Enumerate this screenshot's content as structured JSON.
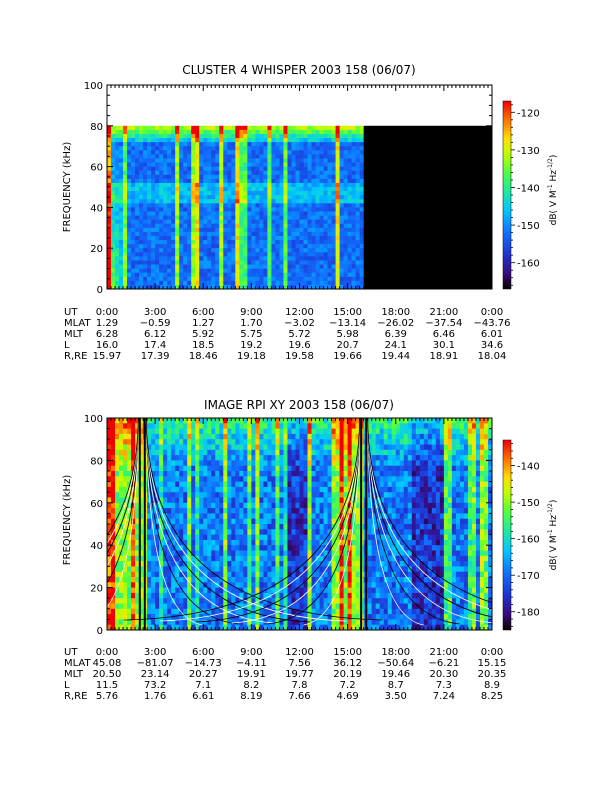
{
  "chart_data": [
    {
      "type": "heatmap",
      "title": "CLUSTER 4 WHISPER 2003 158 (06/07)",
      "ylabel": "FREQUENCY (kHz)",
      "ylim": [
        0,
        100
      ],
      "y_ticks": [
        "0",
        "20",
        "40",
        "60",
        "80",
        "100"
      ],
      "x_ticks": [
        "0:00",
        "3:00",
        "6:00",
        "9:00",
        "12:00",
        "15:00",
        "18:00",
        "21:00",
        "0:00"
      ],
      "data_extent": {
        "max_freq_khz": 80,
        "end_time_hours": 16.0
      },
      "colorbar": {
        "label": "dB( V M⁻¹ Hz⁻¹ᐟ²)",
        "label_parts": {
          "base": "dB( V M",
          "m_exp": "-1",
          "hz": " Hz",
          "hz_exp": "-1/2",
          "close": ")"
        },
        "range": [
          -167,
          -117
        ],
        "ticks": [
          "-120",
          "-130",
          "-140",
          "-150",
          "-160"
        ],
        "tick_values": [
          -120,
          -130,
          -140,
          -150,
          -160
        ]
      },
      "ephemeris": {
        "labels": [
          "UT",
          "MLAT",
          "MLT",
          "L",
          "R,RE"
        ],
        "rows": [
          [
            "0:00",
            "3:00",
            "6:00",
            "9:00",
            "12:00",
            "15:00",
            "18:00",
            "21:00",
            "0:00"
          ],
          [
            "1.29",
            "−0.59",
            "1.27",
            "1.70",
            "−3.02",
            "−13.14",
            "−26.02",
            "−37.54",
            "−43.76"
          ],
          [
            "6.28",
            "6.12",
            "5.92",
            "5.75",
            "5.72",
            "5.98",
            "6.39",
            "6.46",
            "6.01"
          ],
          [
            "16.0",
            "17.4",
            "18.5",
            "19.2",
            "19.6",
            "20.7",
            "24.1",
            "30.1",
            "34.6"
          ],
          [
            "15.97",
            "17.39",
            "18.46",
            "19.18",
            "19.58",
            "19.66",
            "19.44",
            "18.91",
            "18.04"
          ]
        ]
      }
    },
    {
      "type": "heatmap",
      "title": "IMAGE RPI XY 2003 158 (06/07)",
      "ylabel": "FREQUENCY (kHz)",
      "ylim": [
        0,
        100
      ],
      "y_ticks": [
        "0",
        "20",
        "40",
        "60",
        "80",
        "100"
      ],
      "x_ticks": [
        "0:00",
        "3:00",
        "6:00",
        "9:00",
        "12:00",
        "15:00",
        "18:00",
        "21:00",
        "0:00"
      ],
      "colorbar": {
        "label": "dB( V M⁻¹ Hz⁻¹ᐟ²)",
        "label_parts": {
          "base": "dB( V M",
          "m_exp": "-1",
          "hz": " Hz",
          "hz_exp": "-1/2",
          "close": ")"
        },
        "range": [
          -185,
          -133
        ],
        "ticks": [
          "-140",
          "-150",
          "-160",
          "-170",
          "-180"
        ],
        "tick_values": [
          -140,
          -150,
          -160,
          -170,
          -180
        ]
      },
      "overlay_centers_hours": [
        2.2,
        16.0
      ],
      "ephemeris": {
        "labels": [
          "UT",
          "MLAT",
          "MLT",
          "L",
          "R,RE"
        ],
        "rows": [
          [
            "0:00",
            "3:00",
            "6:00",
            "9:00",
            "12:00",
            "15:00",
            "18:00",
            "21:00",
            "0:00"
          ],
          [
            "45.08",
            "−81.07",
            "−14.73",
            "−4.11",
            "7.56",
            "36.12",
            "−50.64",
            "−6.21",
            "15.15"
          ],
          [
            "20.50",
            "23.14",
            "20.27",
            "19.91",
            "19.77",
            "20.19",
            "19.46",
            "20.30",
            "20.35"
          ],
          [
            "11.5",
            "73.2",
            "7.1",
            "8.2",
            "7.8",
            "7.2",
            "8.7",
            "7.3",
            "8.9"
          ],
          [
            "5.76",
            "1.76",
            "6.61",
            "8.19",
            "7.66",
            "4.69",
            "3.50",
            "7.24",
            "8.25"
          ]
        ]
      }
    }
  ]
}
